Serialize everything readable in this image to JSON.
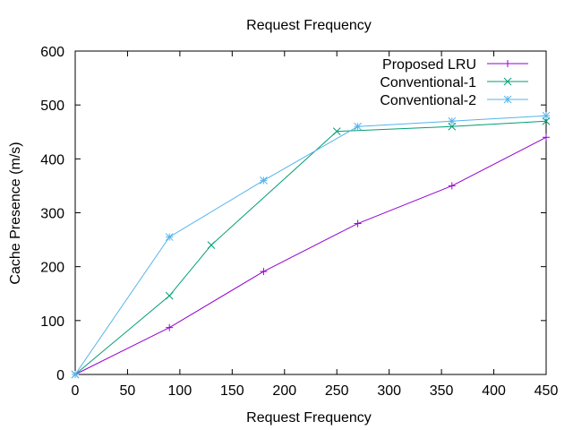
{
  "chart_data": {
    "type": "line",
    "title": "Request Frequency",
    "xlabel": "Request Frequency",
    "ylabel": "Cache Presence (m/s)",
    "xlim": [
      0,
      450
    ],
    "ylim": [
      0,
      600
    ],
    "xticks": [
      0,
      50,
      100,
      150,
      200,
      250,
      300,
      350,
      400,
      450
    ],
    "yticks": [
      0,
      100,
      200,
      300,
      400,
      500,
      600
    ],
    "grid": false,
    "legend_position": "top-right",
    "series": [
      {
        "name": "Proposed LRU",
        "color": "#9400d3",
        "marker": "plus",
        "x": [
          0,
          90,
          180,
          270,
          360,
          450
        ],
        "y": [
          0,
          87,
          191,
          280,
          350,
          440
        ]
      },
      {
        "name": "Conventional-1",
        "color": "#009e73",
        "marker": "cross",
        "x": [
          0,
          90,
          130,
          250,
          360,
          450
        ],
        "y": [
          0,
          146,
          240,
          451,
          460,
          470
        ]
      },
      {
        "name": "Conventional-2",
        "color": "#56b4e9",
        "marker": "star",
        "x": [
          0,
          90,
          180,
          270,
          360,
          450
        ],
        "y": [
          0,
          255,
          360,
          460,
          470,
          480
        ]
      }
    ]
  }
}
